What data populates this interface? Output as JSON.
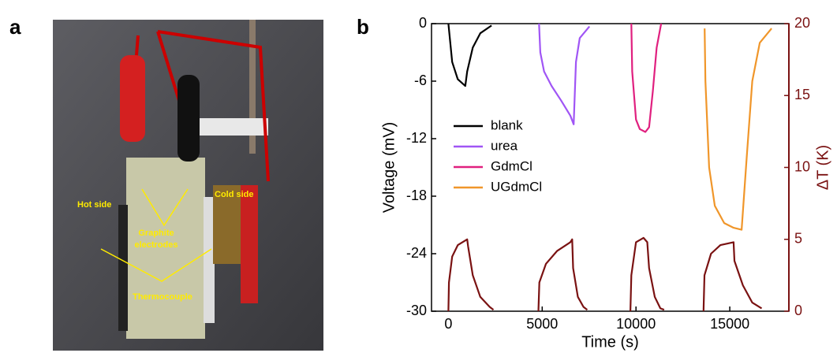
{
  "panel_labels": [
    "a",
    "b"
  ],
  "photo": {
    "labels": [
      "Hot side",
      "Cold side",
      "Graphite",
      "electrodes",
      "Thermocouple"
    ]
  },
  "chart_data": {
    "type": "line",
    "xlabel": "Time (s)",
    "ylabel": "Voltage (mV)",
    "y2label": "ΔT (K)",
    "xlim": [
      -900,
      18150
    ],
    "xticks": [
      0,
      5000,
      10000,
      15000
    ],
    "ylim": [
      -30,
      0
    ],
    "yticks": [
      -30,
      -24,
      -18,
      -12,
      -6,
      0
    ],
    "y2lim": [
      0,
      20
    ],
    "y2ticks": [
      0,
      5,
      10,
      15,
      20
    ],
    "y2color": "#7a1212",
    "series": [
      {
        "name": "blank",
        "color": "#000000",
        "x": [
          0,
          50,
          200,
          500,
          900,
          1000,
          1300,
          1700,
          2300
        ],
        "values": [
          0,
          -1,
          -4,
          -5.8,
          -6.5,
          -5,
          -2.5,
          -1,
          -0.2
        ]
      },
      {
        "name": "urea",
        "color": "#a055f5",
        "x": [
          4830,
          4900,
          5100,
          5500,
          6000,
          6500,
          6680,
          6800,
          7000,
          7520
        ],
        "values": [
          0,
          -3,
          -5,
          -6.5,
          -8,
          -9.6,
          -10.5,
          -4,
          -1.5,
          -0.3
        ]
      },
      {
        "name": "GdmCl",
        "color": "#e0207f",
        "x": [
          9750,
          9800,
          10000,
          10200,
          10500,
          10700,
          10900,
          11100,
          11340
        ],
        "values": [
          0,
          -5,
          -10,
          -11,
          -11.3,
          -10.8,
          -7,
          -2.5,
          0
        ]
      },
      {
        "name": "UGdmCl",
        "color": "#f0962a",
        "x": [
          13660,
          13700,
          13900,
          14200,
          14700,
          15200,
          15630,
          15900,
          16200,
          16600,
          17230
        ],
        "values": [
          -0.5,
          -6,
          -15,
          -19,
          -20.8,
          -21.3,
          -21.5,
          -14,
          -6,
          -2,
          -0.5
        ]
      },
      {
        "axis": "y2",
        "color": "#7a1212",
        "x": [
          0,
          30,
          200,
          500,
          1000,
          1050,
          1300,
          1700,
          2200,
          2400,
          null,
          4800,
          4850,
          5200,
          5800,
          6500,
          6600,
          6650,
          6900,
          7200,
          7400,
          null,
          9700,
          9750,
          10000,
          10400,
          10600,
          10700,
          11000,
          11300,
          11500,
          null,
          13600,
          13650,
          14000,
          14500,
          15200,
          15250,
          15700,
          16200,
          16700
        ],
        "values": [
          0,
          2,
          3.8,
          4.6,
          5,
          4.5,
          2.5,
          1,
          0.3,
          0.1,
          null,
          0,
          2,
          3.3,
          4.2,
          4.8,
          5,
          3,
          1,
          0.3,
          0.1,
          null,
          0,
          2.5,
          4.8,
          5.1,
          4.8,
          3,
          1,
          0.2,
          0.1,
          null,
          0,
          2.5,
          4,
          4.6,
          4.8,
          3.5,
          1.8,
          0.6,
          0.2
        ]
      }
    ]
  }
}
